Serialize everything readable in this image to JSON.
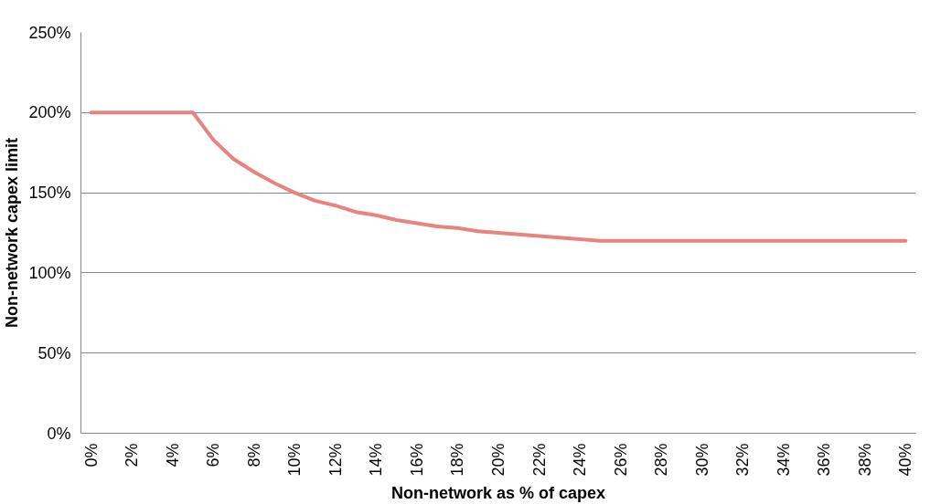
{
  "chart_data": {
    "type": "line",
    "xlabel": "Non-network as % of capex",
    "ylabel": "Non-network capex limit",
    "categories": [
      "0%",
      null,
      "2%",
      null,
      "4%",
      null,
      "6%",
      null,
      "8%",
      null,
      "10%",
      null,
      "12%",
      null,
      "14%",
      null,
      "16%",
      null,
      "18%",
      null,
      "20%",
      null,
      "22%",
      null,
      "24%",
      null,
      "26%",
      null,
      "28%",
      null,
      "30%",
      null,
      "32%",
      null,
      "34%",
      null,
      "36%",
      null,
      "38%",
      null,
      "40%"
    ],
    "series": [
      {
        "color": "#e8837f",
        "values": [
          200,
          200,
          200,
          200,
          200,
          200,
          183,
          171,
          163,
          156,
          150,
          145,
          142,
          138,
          136,
          133,
          131,
          129,
          128,
          126,
          125,
          124,
          123,
          122,
          121,
          120,
          120,
          120,
          120,
          120,
          120,
          120,
          120,
          120,
          120,
          120,
          120,
          120,
          120,
          120,
          120
        ]
      }
    ],
    "ylim": [
      0,
      250
    ],
    "yticks": [
      {
        "value": 0,
        "label": "0%"
      },
      {
        "value": 50,
        "label": "50%"
      },
      {
        "value": 100,
        "label": "100%"
      },
      {
        "value": 150,
        "label": "150%"
      },
      {
        "value": 200,
        "label": "200%"
      },
      {
        "value": 250,
        "label": "250%"
      }
    ],
    "grid": "y",
    "marker": "none",
    "line_style": "solid"
  }
}
